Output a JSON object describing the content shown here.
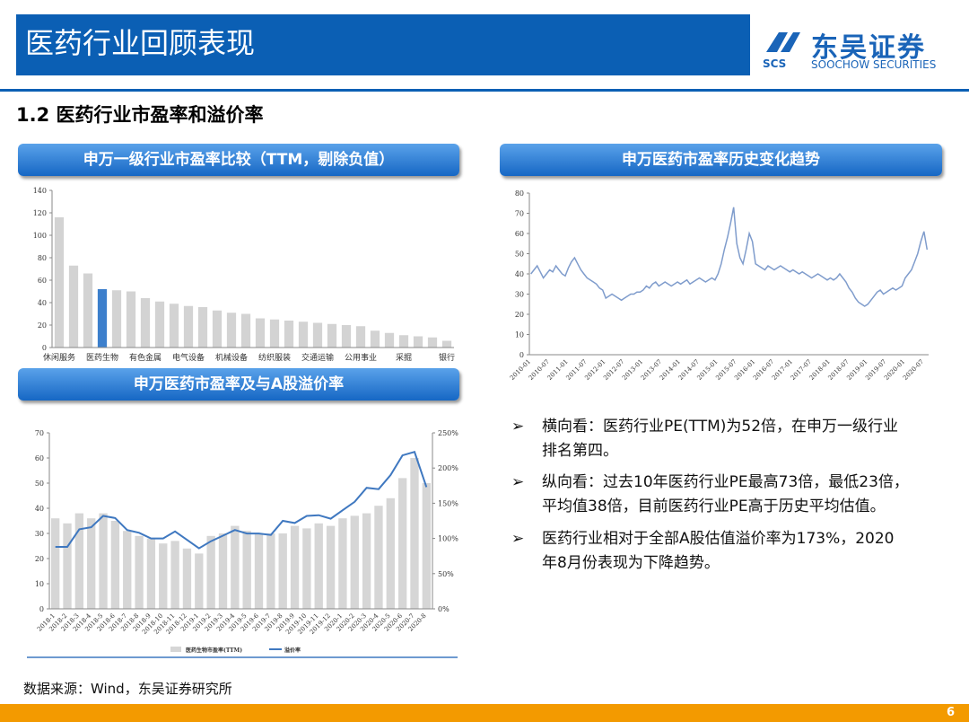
{
  "header": {
    "title": "医药行业回顾表现",
    "logo_mark": "SCS",
    "logo_cn": "东吴证券",
    "logo_en": "SOOCHOW SECURITIES"
  },
  "section": "1.2 医药行业市盈率和溢价率",
  "boxes": [
    "申万一级行业市盈率比较（TTM，剔除负值）",
    "申万医药市盈率历史变化趋势",
    "申万医药市盈率及与A股溢价率"
  ],
  "bullets": [
    [
      "横向看：医药行业PE(TTM)为52倍，在申万一级行业",
      "排名第四。"
    ],
    [
      "纵向看：过去10年医药行业PE最高73倍，最低23倍，",
      "平均值38倍，目前医药行业PE高于历史平均估值。"
    ],
    [
      "医药行业相对于全部A股估值溢价率为173%，2020",
      "年8月份表现为下降趋势。"
    ]
  ],
  "source": "数据来源：Wind，东吴证券研究所",
  "page": "6",
  "chart_data": [
    {
      "type": "bar",
      "categories": [
        "休闲服务",
        null,
        null,
        "医药生物",
        null,
        null,
        "有色金属",
        null,
        null,
        "电气设备",
        null,
        null,
        "机械设备",
        null,
        null,
        "纺织服装",
        null,
        null,
        "交通运输",
        null,
        null,
        "公用事业",
        null,
        null,
        "采掘",
        null,
        null,
        "银行"
      ],
      "values": [
        116,
        73,
        66,
        52,
        51,
        50,
        44,
        41,
        39,
        37,
        36,
        33,
        31,
        30,
        26,
        25,
        24,
        23,
        22,
        21,
        20,
        19,
        15,
        13,
        11,
        10,
        9,
        6
      ],
      "colors": [
        "#d3d3d3",
        "#d3d3d3",
        "#d3d3d3",
        "#3c7fcc",
        "#d3d3d3",
        "#d3d3d3",
        "#d3d3d3",
        "#d3d3d3",
        "#d3d3d3",
        "#d3d3d3",
        "#d3d3d3",
        "#d3d3d3",
        "#d3d3d3",
        "#d3d3d3",
        "#d3d3d3",
        "#d3d3d3",
        "#d3d3d3",
        "#d3d3d3",
        "#d3d3d3",
        "#d3d3d3",
        "#d3d3d3",
        "#d3d3d3",
        "#d3d3d3",
        "#d3d3d3",
        "#d3d3d3",
        "#d3d3d3",
        "#d3d3d3",
        "#d3d3d3"
      ],
      "ylim": [
        0,
        140
      ],
      "yticks": [
        0,
        20,
        40,
        60,
        80,
        100,
        120,
        140
      ]
    },
    {
      "type": "line",
      "color": "#7f9ccc",
      "categories": [
        "2010-01",
        null,
        null,
        null,
        null,
        null,
        "2010-07",
        null,
        null,
        null,
        null,
        null,
        "2011-01",
        null,
        null,
        null,
        null,
        null,
        "2011-07",
        null,
        null,
        null,
        null,
        null,
        "2012-01",
        null,
        null,
        null,
        null,
        null,
        "2012-07",
        null,
        null,
        null,
        null,
        null,
        "2013-01",
        null,
        null,
        null,
        null,
        null,
        "2013-07",
        null,
        null,
        null,
        null,
        null,
        "2014-01",
        null,
        null,
        null,
        null,
        null,
        "2014-07",
        null,
        null,
        null,
        null,
        null,
        "2015-01",
        null,
        null,
        null,
        null,
        null,
        "2015-07",
        null,
        null,
        null,
        null,
        null,
        "2016-01",
        null,
        null,
        null,
        null,
        null,
        "2016-07",
        null,
        null,
        null,
        null,
        null,
        "2017-01",
        null,
        null,
        null,
        null,
        null,
        "2017-07",
        null,
        null,
        null,
        null,
        null,
        "2018-01",
        null,
        null,
        null,
        null,
        null,
        "2018-07",
        null,
        null,
        null,
        null,
        null,
        "2019-01",
        null,
        null,
        null,
        null,
        null,
        "2019-07",
        null,
        null,
        null,
        null,
        null,
        "2020-01",
        null,
        null,
        null,
        null,
        null,
        "2020-07",
        null
      ],
      "values": [
        40,
        42,
        44,
        41,
        38,
        40,
        42,
        41,
        44,
        42,
        40,
        39,
        43,
        46,
        48,
        45,
        42,
        40,
        38,
        37,
        36,
        35,
        33,
        32,
        28,
        29,
        30,
        29,
        28,
        27,
        28,
        29,
        30,
        30,
        31,
        31,
        32,
        34,
        33,
        35,
        36,
        34,
        35,
        36,
        35,
        34,
        35,
        36,
        35,
        36,
        37,
        35,
        36,
        37,
        38,
        37,
        36,
        37,
        38,
        37,
        40,
        45,
        52,
        58,
        65,
        73,
        55,
        48,
        45,
        52,
        60,
        56,
        45,
        44,
        43,
        42,
        44,
        43,
        42,
        43,
        44,
        43,
        42,
        41,
        42,
        41,
        40,
        41,
        40,
        39,
        38,
        39,
        40,
        39,
        38,
        37,
        38,
        37,
        38,
        40,
        38,
        36,
        33,
        31,
        28,
        26,
        25,
        24,
        25,
        27,
        29,
        31,
        32,
        30,
        31,
        32,
        33,
        32,
        33,
        34,
        38,
        40,
        42,
        46,
        50,
        56,
        61,
        52
      ],
      "ylim": [
        0,
        80
      ],
      "yticks": [
        0,
        10,
        20,
        30,
        40,
        50,
        60,
        70,
        80
      ]
    },
    {
      "type": "combo",
      "categories": [
        "2018-1",
        "2018-2",
        "2018-3",
        "2018-4",
        "2018-5",
        "2018-6",
        "2018-7",
        "2018-8",
        "2018-9",
        "2018-10",
        "2018-11",
        "2018-12",
        "2019-1",
        "2019-2",
        "2019-3",
        "2019-4",
        "2019-5",
        "2019-6",
        "2019-7",
        "2019-8",
        "2019-9",
        "2019-10",
        "2019-11",
        "2019-12",
        "2020-1",
        "2020-2",
        "2020-3",
        "2020-4",
        "2020-5",
        "2020-6",
        "2020-7",
        "2020-8"
      ],
      "series": [
        {
          "name": "医药生物市盈率(TTM)",
          "color": "#d6d6d6",
          "mark": "bar",
          "values": [
            36,
            34,
            38,
            36,
            38,
            35,
            31,
            29,
            28,
            26,
            27,
            24,
            22,
            29,
            30,
            33,
            31,
            30,
            30,
            30,
            33,
            32,
            34,
            33,
            36,
            37,
            38,
            41,
            44,
            52,
            60,
            50
          ]
        },
        {
          "name": "溢价率",
          "color": "#3f78c0",
          "mark": "line",
          "axis": "y2",
          "values": [
            88,
            88,
            113,
            116,
            132,
            129,
            112,
            108,
            100,
            100,
            110,
            98,
            86,
            96,
            104,
            112,
            107,
            107,
            105,
            125,
            122,
            132,
            133,
            128,
            140,
            152,
            172,
            170,
            190,
            218,
            223,
            173
          ]
        }
      ],
      "ylim": [
        0,
        70
      ],
      "yticks": [
        0,
        10,
        20,
        30,
        40,
        50,
        60,
        70
      ],
      "y2lim": [
        0,
        250
      ],
      "y2ticks": [
        {
          "value": 0,
          "label": "0%"
        },
        {
          "value": 50,
          "label": "50%"
        },
        {
          "value": 100,
          "label": "100%"
        },
        {
          "value": 150,
          "label": "150%"
        },
        {
          "value": 200,
          "label": "200%"
        },
        {
          "value": 250,
          "label": "250%"
        }
      ]
    }
  ]
}
